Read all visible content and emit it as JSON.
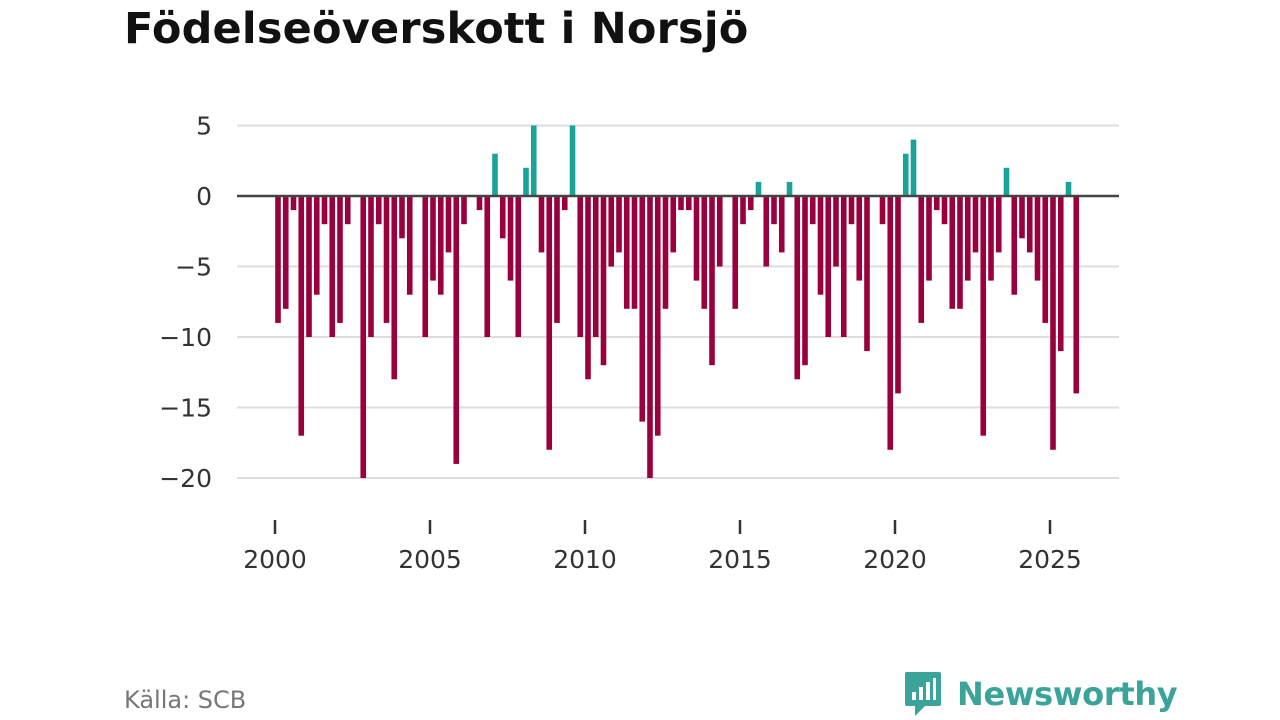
{
  "title": "Födelseöverskott i Norsjö",
  "source": "Källa: SCB",
  "brand": "Newsworthy",
  "colors": {
    "positive": "#1aa398",
    "negative": "#99003d",
    "grid": "#dddddd",
    "zero": "#444444"
  },
  "chart_data": {
    "type": "bar",
    "title": "Födelseöverskott i Norsjö",
    "xlabel": "",
    "ylabel": "",
    "x_start": 2000,
    "x_step_per_bar": 0.25,
    "xticks": [
      2000,
      2005,
      2010,
      2015,
      2020,
      2025
    ],
    "xtick_labels": [
      "2000",
      "2005",
      "2010",
      "2015",
      "2020",
      "2025"
    ],
    "yticks": [
      5,
      0,
      -5,
      -10,
      -15,
      -20
    ],
    "ytick_labels": [
      "5",
      "0",
      "−5",
      "−10",
      "−15",
      "−20"
    ],
    "ylim": [
      -20,
      5
    ],
    "values": [
      -9,
      -8,
      -1,
      -17,
      -10,
      -7,
      -2,
      -10,
      -9,
      -2,
      0,
      -20,
      -10,
      -2,
      -9,
      -13,
      -3,
      -7,
      0,
      -10,
      -6,
      -7,
      -4,
      -19,
      -2,
      0,
      -1,
      -10,
      3,
      -3,
      -6,
      -10,
      2,
      5,
      -4,
      -18,
      -9,
      -1,
      5,
      -10,
      -13,
      -10,
      -12,
      -5,
      -4,
      -8,
      -8,
      -16,
      -20,
      -17,
      -8,
      -4,
      -1,
      -1,
      -6,
      -8,
      -12,
      -5,
      0,
      -8,
      -2,
      -1,
      1,
      -5,
      -2,
      -4,
      1,
      -13,
      -12,
      -2,
      -7,
      -10,
      -5,
      -10,
      -2,
      -6,
      -11,
      0,
      -2,
      -18,
      -14,
      3,
      4,
      -9,
      -6,
      -1,
      -2,
      -8,
      -8,
      -6,
      -4,
      -17,
      -6,
      -4,
      2,
      -7,
      -3,
      -4,
      -6,
      -9,
      -18,
      -11,
      1,
      -14
    ]
  }
}
